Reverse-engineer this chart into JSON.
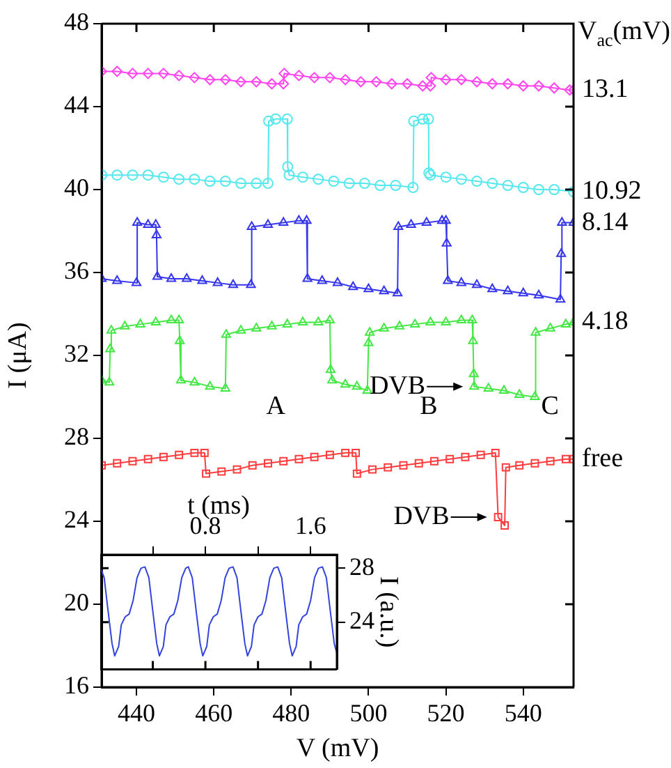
{
  "chart_data": [
    {
      "type": "line",
      "xlabel": "V (mV)",
      "ylabel": "I (μA)",
      "legend_title": "V$_{ac}$(mV)",
      "legend": false,
      "xlim": [
        431,
        553
      ],
      "xticks": [
        440,
        460,
        480,
        500,
        520,
        540
      ],
      "ylim": [
        16,
        48
      ],
      "yticks": [
        16,
        20,
        24,
        28,
        32,
        36,
        40,
        44,
        48
      ],
      "series": [
        {
          "name": "13.1",
          "color": "#ff44ee",
          "marker": "diamond",
          "x": [
            431,
            435,
            439,
            443,
            447,
            451,
            455,
            459,
            463,
            467,
            471,
            475,
            478,
            478.2,
            482,
            486,
            490,
            494,
            498,
            502,
            506,
            510,
            514,
            516,
            516.2,
            520,
            524,
            528,
            532,
            536,
            540,
            544,
            548,
            552,
            553
          ],
          "values": [
            45.7,
            45.7,
            45.6,
            45.6,
            45.6,
            45.5,
            45.4,
            45.3,
            45.3,
            45.2,
            45.2,
            45.1,
            45.1,
            45.6,
            45.5,
            45.4,
            45.4,
            45.3,
            45.2,
            45.2,
            45.1,
            45.1,
            45.0,
            45.0,
            45.4,
            45.3,
            45.3,
            45.2,
            45.1,
            45.1,
            45.0,
            45.0,
            44.9,
            44.8,
            44.8
          ]
        },
        {
          "name": "10.92",
          "color": "#55e8ee",
          "marker": "circle",
          "x": [
            431,
            435,
            439,
            443,
            447,
            451,
            455,
            459,
            463,
            467,
            471,
            474,
            474.2,
            476,
            479,
            479.1,
            479.5,
            483,
            487,
            491,
            495,
            499,
            503,
            507,
            511.5,
            511.7,
            514,
            515.5,
            515.6,
            516,
            520,
            524,
            528,
            532,
            536,
            540,
            544,
            548,
            553
          ],
          "values": [
            40.7,
            40.7,
            40.7,
            40.7,
            40.6,
            40.5,
            40.5,
            40.4,
            40.4,
            40.3,
            40.3,
            40.3,
            43.3,
            43.4,
            43.4,
            41.1,
            40.7,
            40.6,
            40.5,
            40.4,
            40.3,
            40.3,
            40.2,
            40.2,
            40.1,
            43.3,
            43.4,
            43.4,
            40.8,
            40.7,
            40.6,
            40.5,
            40.4,
            40.3,
            40.2,
            40.1,
            40.0,
            40.0,
            39.9
          ]
        },
        {
          "name": "8.14",
          "color": "#3535ee",
          "marker": "triangle",
          "x": [
            431,
            435,
            440,
            440.2,
            443,
            445,
            445.2,
            445.4,
            449,
            453,
            457,
            461,
            465,
            469.6,
            469.8,
            474,
            478,
            482,
            484,
            484.2,
            488,
            492,
            496,
            500,
            504,
            507.5,
            507.7,
            511,
            515,
            519,
            520,
            520.2,
            520.5,
            524,
            528,
            532,
            536,
            540,
            544,
            549.6,
            549.8,
            550,
            553
          ],
          "values": [
            35.7,
            35.6,
            35.5,
            38.4,
            38.3,
            38.3,
            37.8,
            35.8,
            35.7,
            35.7,
            35.6,
            35.5,
            35.4,
            35.4,
            38.2,
            38.3,
            38.4,
            38.5,
            38.5,
            35.7,
            35.6,
            35.5,
            35.3,
            35.2,
            35.1,
            35.0,
            38.2,
            38.3,
            38.4,
            38.5,
            38.5,
            37.4,
            35.6,
            35.5,
            35.4,
            35.2,
            35.1,
            35.0,
            34.9,
            34.7,
            36.9,
            38.4,
            38.4
          ]
        },
        {
          "name": "4.18",
          "color": "#44e844",
          "marker": "triangle",
          "x": [
            431,
            433,
            433.2,
            433.5,
            437,
            441,
            445,
            449,
            451,
            451.2,
            451.5,
            455,
            459,
            463,
            463.2,
            467,
            471,
            475,
            479,
            483,
            487,
            490,
            490.2,
            490.6,
            494,
            497,
            499.7,
            500,
            500.3,
            504,
            508,
            512,
            516,
            520,
            524,
            526.8,
            527,
            527.2,
            527.3,
            531,
            535,
            539,
            543,
            543.2,
            547,
            551,
            553
          ],
          "values": [
            30.8,
            30.7,
            32.3,
            33.2,
            33.4,
            33.5,
            33.6,
            33.7,
            33.7,
            32.7,
            30.8,
            30.7,
            30.5,
            30.4,
            33.0,
            33.2,
            33.3,
            33.4,
            33.5,
            33.6,
            33.6,
            33.7,
            31.3,
            30.8,
            30.6,
            30.5,
            30.3,
            32.6,
            33.1,
            33.3,
            33.4,
            33.5,
            33.6,
            33.6,
            33.7,
            33.7,
            32.7,
            31.1,
            30.5,
            30.4,
            30.3,
            30.1,
            30.0,
            33.1,
            33.3,
            33.5,
            33.6
          ]
        },
        {
          "name": "free",
          "color": "#ff3b3b",
          "marker": "square",
          "x": [
            431,
            435,
            439,
            443,
            447,
            451,
            455,
            457.6,
            458,
            462,
            466,
            470,
            474,
            478,
            482,
            486,
            490,
            494,
            496.7,
            497,
            501,
            505,
            509,
            513,
            517,
            521,
            525,
            529,
            532.8,
            533.5,
            535.2,
            535.5,
            539,
            543,
            547,
            551,
            553
          ],
          "values": [
            26.7,
            26.8,
            26.9,
            27.0,
            27.1,
            27.2,
            27.3,
            27.3,
            26.3,
            26.4,
            26.5,
            26.7,
            26.8,
            26.9,
            27.0,
            27.1,
            27.2,
            27.3,
            27.3,
            26.3,
            26.5,
            26.6,
            26.7,
            26.8,
            26.9,
            27.0,
            27.1,
            27.2,
            27.3,
            24.2,
            23.8,
            26.6,
            26.7,
            26.8,
            26.9,
            27.0,
            27.0
          ]
        }
      ],
      "annotations": [
        "A",
        "B",
        "C",
        {
          "text": "DVB",
          "x": 527.3,
          "y": 30.5
        },
        {
          "text": "DVB",
          "x": 533.5,
          "y": 24.2
        }
      ]
    },
    {
      "type": "line",
      "xlabel": "t (ms)",
      "ylabel": "I (a.u.)",
      "color": "#3344dd",
      "marker": "none",
      "xlim": [
        0,
        1.8
      ],
      "xticks": [
        {
          "value": 0.4,
          "label": null
        },
        0.8,
        {
          "value": 1.2,
          "label": null
        },
        1.6
      ],
      "ylim": [
        20.5,
        29
      ],
      "yticks": [
        24,
        28
      ],
      "x": [
        0,
        0.03,
        0.06,
        0.09,
        0.11,
        0.14,
        0.16,
        0.19,
        0.22,
        0.25,
        0.28,
        0.31,
        0.34,
        0.37,
        0.4,
        0.43,
        0.45,
        0.48,
        0.5,
        0.53,
        0.56,
        0.59,
        0.62,
        0.65,
        0.67,
        0.7,
        0.73,
        0.76,
        0.78,
        0.81,
        0.83,
        0.86,
        0.89,
        0.92,
        0.95,
        0.98,
        1.01,
        1.04,
        1.07,
        1.1,
        1.12,
        1.15,
        1.17,
        1.2,
        1.23,
        1.26,
        1.29,
        1.32,
        1.35,
        1.38,
        1.41,
        1.44,
        1.46,
        1.49,
        1.51,
        1.54,
        1.57,
        1.6,
        1.63,
        1.66,
        1.69,
        1.72,
        1.75,
        1.78,
        1.8
      ],
      "values": [
        28.1,
        27.3,
        24.8,
        22.4,
        21.5,
        22.2,
        23.8,
        24.4,
        24.6,
        25.6,
        27.3,
        28.0,
        28.1,
        27.3,
        24.8,
        22.4,
        21.5,
        22.2,
        23.8,
        24.4,
        24.6,
        25.6,
        27.3,
        28.0,
        28.1,
        27.3,
        24.8,
        22.4,
        21.5,
        22.2,
        23.8,
        24.4,
        24.6,
        25.6,
        27.3,
        28.0,
        28.1,
        27.3,
        24.8,
        22.4,
        21.5,
        22.2,
        23.8,
        24.4,
        24.6,
        25.6,
        27.3,
        28.0,
        28.1,
        27.3,
        24.8,
        22.4,
        21.5,
        22.2,
        23.8,
        24.4,
        24.6,
        25.6,
        27.3,
        28.0,
        28.1,
        27.3,
        24.8,
        22.4,
        21.7
      ]
    }
  ]
}
